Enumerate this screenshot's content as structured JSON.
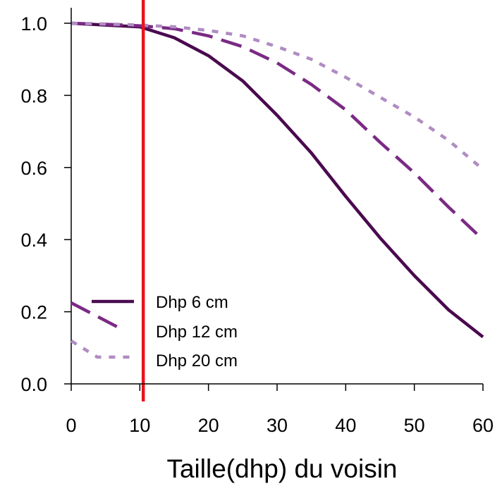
{
  "chart_data": {
    "type": "line",
    "title": "",
    "xlabel": "Taille(dhp) du voisin",
    "ylabel": "",
    "xlim": [
      0,
      60
    ],
    "ylim": [
      0,
      1
    ],
    "x_ticks": [
      "0",
      "10",
      "20",
      "30",
      "40",
      "50",
      "60"
    ],
    "y_ticks": [
      "0.0",
      "0.2",
      "0.4",
      "0.6",
      "0.8",
      "1.0"
    ],
    "x_tick_values": [
      0,
      10,
      20,
      30,
      40,
      50,
      60
    ],
    "y_tick_values": [
      0,
      0.2,
      0.4,
      0.6,
      0.8,
      1.0
    ],
    "grid": false,
    "legend_position": "bottom-left",
    "vertical_line": {
      "x": 10.5,
      "color": "#e8141c"
    },
    "series": [
      {
        "name": "Dhp 6 cm",
        "color": "#4a0a4f",
        "style": "solid",
        "x": [
          0,
          5,
          10,
          15,
          20,
          25,
          30,
          35,
          40,
          45,
          50,
          55,
          60
        ],
        "y": [
          1.0,
          0.995,
          0.99,
          0.96,
          0.91,
          0.84,
          0.745,
          0.64,
          0.52,
          0.405,
          0.3,
          0.205,
          0.13
        ]
      },
      {
        "name": "Dhp 12 cm",
        "color": "#7a2a84",
        "style": "dashed",
        "x": [
          0,
          5,
          10,
          15,
          20,
          25,
          30,
          35,
          40,
          45,
          50,
          55,
          60
        ],
        "y": [
          1.0,
          0.997,
          0.993,
          0.985,
          0.965,
          0.935,
          0.89,
          0.83,
          0.76,
          0.67,
          0.585,
          0.49,
          0.4
        ]
      },
      {
        "name": "Dhp 20 cm",
        "color": "#b08cc2",
        "style": "dotted",
        "x": [
          0,
          5,
          10,
          15,
          20,
          25,
          30,
          35,
          40,
          45,
          50,
          55,
          60
        ],
        "y": [
          1.0,
          0.998,
          0.995,
          0.99,
          0.98,
          0.965,
          0.935,
          0.9,
          0.85,
          0.795,
          0.74,
          0.675,
          0.595
        ]
      }
    ]
  }
}
